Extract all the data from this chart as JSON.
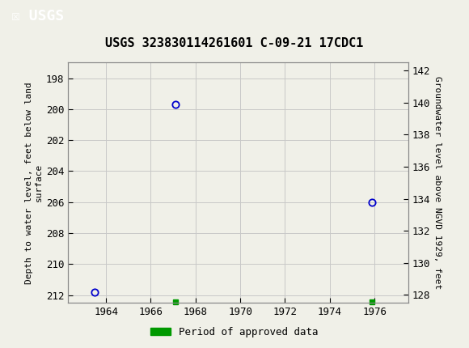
{
  "title": "USGS 323830114261601 C-09-21 17CDC1",
  "header_color": "#006633",
  "bg_color": "#f0f0e8",
  "plot_bg_color": "#f0f0e8",
  "grid_color": "#c8c8c8",
  "data_points": [
    {
      "year": 1963.5,
      "depth": 211.8
    },
    {
      "year": 1967.1,
      "depth": 199.7
    },
    {
      "year": 1975.9,
      "depth": 206.0
    }
  ],
  "approved_markers": [
    {
      "year": 1967.1
    },
    {
      "year": 1975.9
    }
  ],
  "ylim_left_top": 197.0,
  "ylim_left_bottom": 212.5,
  "ylim_right_top": 142.5,
  "ylim_right_bottom": 127.5,
  "xlim": [
    1962.3,
    1977.5
  ],
  "xticks": [
    1964,
    1966,
    1968,
    1970,
    1972,
    1974,
    1976
  ],
  "yticks_left": [
    198,
    200,
    202,
    204,
    206,
    208,
    210,
    212
  ],
  "yticks_right": [
    128,
    130,
    132,
    134,
    136,
    138,
    140,
    142
  ],
  "ylabel_left": "Depth to water level, feet below land\nsurface",
  "ylabel_right": "Groundwater level above NGVD 1929, feet",
  "marker_color": "#0000cc",
  "approved_color": "#009900",
  "legend_label": "Period of approved data",
  "font_family": "monospace",
  "title_fontsize": 11,
  "tick_fontsize": 9,
  "label_fontsize": 8
}
